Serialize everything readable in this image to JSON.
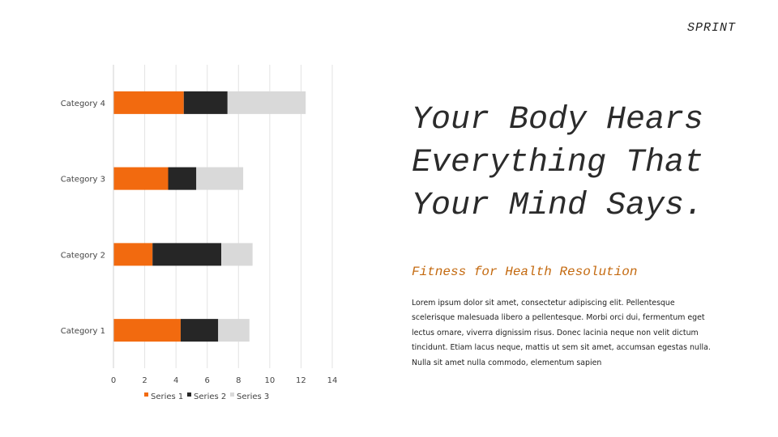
{
  "brand": "SPRINT",
  "headline": "Your Body Hears\nEverything That\nYour Mind Says.",
  "subhead": "Fitness for Health Resolution",
  "body": "Lorem ipsum dolor sit amet, consectetur adipiscing elit. Pellentesque scelerisque malesuada libero a pellentesque. Morbi orci dui, fermentum eget lectus ornare, viverra dignissim risus. Donec lacinia neque non velit dictum tincidunt. Etiam lacus neque, mattis ut sem sit amet, accumsan egestas nulla. Nulla sit amet nulla commodo, elementum sapien",
  "chart_data": {
    "type": "bar",
    "orientation": "horizontal",
    "stacked": true,
    "categories": [
      "Category 1",
      "Category 2",
      "Category 3",
      "Category 4"
    ],
    "series": [
      {
        "name": "Series 1",
        "values": [
          4.3,
          2.5,
          3.5,
          4.5
        ],
        "color": "#f26a0f"
      },
      {
        "name": "Series 2",
        "values": [
          2.4,
          4.4,
          1.8,
          2.8
        ],
        "color": "#262626"
      },
      {
        "name": "Series 3",
        "values": [
          2.0,
          2.0,
          3.0,
          5.0
        ],
        "color": "#d9d9d9"
      }
    ],
    "xlim": [
      0,
      14
    ],
    "xticks": [
      0,
      2,
      4,
      6,
      8,
      10,
      12,
      14
    ],
    "grid": true,
    "legend_position": "bottom"
  }
}
